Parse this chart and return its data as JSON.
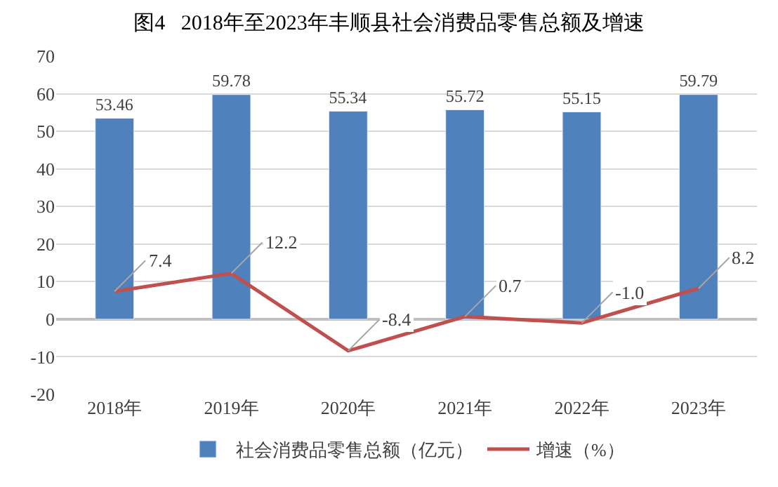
{
  "chart_data": {
    "type": "bar",
    "title": "图4   2018年至2023年丰顺县社会消费品零售总额及增速",
    "categories": [
      "2018年",
      "2019年",
      "2020年",
      "2021年",
      "2022年",
      "2023年"
    ],
    "series": [
      {
        "name": "社会消费品零售总额（亿元）",
        "color": "#4f81bd",
        "values": [
          53.46,
          59.78,
          55.34,
          55.72,
          55.15,
          59.79
        ]
      },
      {
        "name": "增速（%）",
        "type": "line",
        "color": "#c0504d",
        "values": [
          7.4,
          12.2,
          -8.4,
          0.7,
          -1.0,
          8.2
        ],
        "value_labels": [
          "7.4",
          "12.2",
          "-8.4",
          "0.7",
          "-1.0",
          "8.2"
        ]
      }
    ],
    "ylim": [
      -20,
      70
    ],
    "yticks": [
      -20,
      -10,
      0,
      10,
      20,
      30,
      40,
      50,
      60,
      70
    ],
    "grid": "y",
    "legend": "bottom",
    "data_labels": true,
    "marker": "none"
  }
}
